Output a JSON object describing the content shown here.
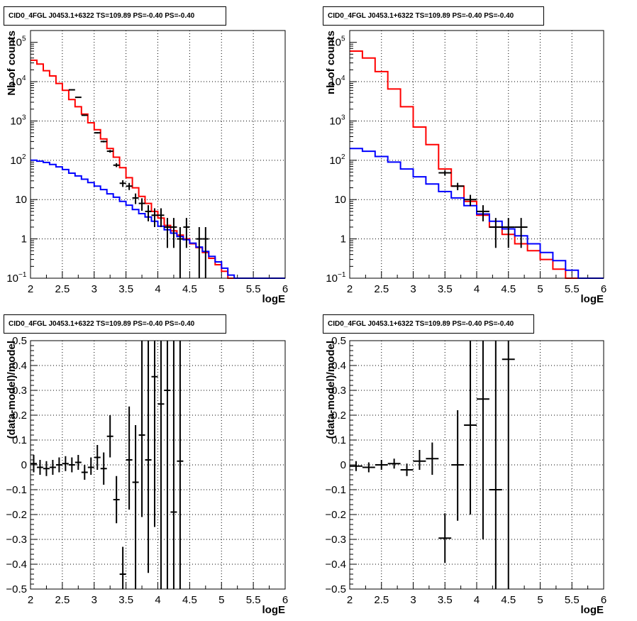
{
  "chart_data": [
    {
      "type": "line",
      "title": "CID0_4FGL J0453.1+6322 TS=109.89 PS=-0.40 PS=-0.40",
      "xlabel": "logE",
      "ylabel": "Nb of counts",
      "xlim": [
        2,
        6
      ],
      "ylim": [
        0.1,
        200000
      ],
      "yscale": "log",
      "grid": true,
      "x_ticks": [
        "2",
        "2.5",
        "3",
        "3.5",
        "4",
        "4.5",
        "5",
        "5.5",
        "6"
      ],
      "y_ticks": [
        {
          "value": 0.1,
          "label": "10",
          "exp": "−1"
        },
        {
          "value": 1,
          "label": "1",
          "exp": ""
        },
        {
          "value": 10,
          "label": "10",
          "exp": ""
        },
        {
          "value": 100,
          "label": "10",
          "exp": "2"
        },
        {
          "value": 1000,
          "label": "10",
          "exp": "3"
        },
        {
          "value": 10000,
          "label": "10",
          "exp": "4"
        },
        {
          "value": 100000,
          "label": "10",
          "exp": "5"
        }
      ],
      "bin_edges": [
        2.0,
        2.1,
        2.2,
        2.3,
        2.4,
        2.5,
        2.6,
        2.7,
        2.8,
        2.9,
        3.0,
        3.1,
        3.2,
        3.3,
        3.4,
        3.5,
        3.6,
        3.7,
        3.8,
        3.9,
        4.0,
        4.1,
        4.2,
        4.3,
        4.4,
        4.5,
        4.6,
        4.7,
        4.8,
        4.9,
        5.0,
        5.1,
        5.2,
        5.3,
        5.4,
        5.5,
        5.6,
        5.7,
        5.8,
        5.9,
        6.0
      ],
      "series": [
        {
          "name": "",
          "color": "#ff0000",
          "style": "step",
          "values": [
            35000,
            28000,
            19000,
            14000,
            9000,
            6000,
            3500,
            2300,
            1500,
            900,
            600,
            350,
            200,
            120,
            65,
            36,
            20,
            12,
            8,
            5,
            3.4,
            2.2,
            1.6,
            1.25,
            1.0,
            0.75,
            0.6,
            0.45,
            0.32,
            0.22,
            0.15,
            0.1,
            0.1,
            0.1,
            0.1,
            0.1,
            0.1,
            0.1,
            0.1,
            0.1
          ]
        },
        {
          "name": "",
          "color": "#0000ff",
          "style": "step",
          "values": [
            100,
            95,
            88,
            78,
            68,
            58,
            47,
            40,
            33,
            27,
            22,
            18,
            14,
            11.5,
            9,
            7.2,
            5.6,
            4.4,
            3.6,
            2.8,
            2.1,
            1.7,
            1.4,
            1.15,
            0.95,
            0.78,
            0.62,
            0.48,
            0.36,
            0.26,
            0.18,
            0.12,
            0.1,
            0.1,
            0.1,
            0.1,
            0.1,
            0.1,
            0.1,
            0.1
          ]
        }
      ],
      "points": [
        {
          "x": 2.65,
          "y": 6200,
          "lo": 6050,
          "hi": 6350
        },
        {
          "x": 2.75,
          "y": 4000,
          "lo": 3900,
          "hi": 4100
        },
        {
          "x": 2.85,
          "y": 1400,
          "lo": 1350,
          "hi": 1450
        },
        {
          "x": 3.05,
          "y": 500,
          "lo": 480,
          "hi": 520
        },
        {
          "x": 3.15,
          "y": 300,
          "lo": 285,
          "hi": 315
        },
        {
          "x": 3.25,
          "y": 170,
          "lo": 157,
          "hi": 183
        },
        {
          "x": 3.35,
          "y": 75,
          "lo": 67,
          "hi": 84
        },
        {
          "x": 3.45,
          "y": 26,
          "lo": 21,
          "hi": 31
        },
        {
          "x": 3.55,
          "y": 22,
          "lo": 17.5,
          "hi": 26.5
        },
        {
          "x": 3.65,
          "y": 11,
          "lo": 7.7,
          "hi": 14.3
        },
        {
          "x": 3.75,
          "y": 8,
          "lo": 5.2,
          "hi": 10.8
        },
        {
          "x": 3.85,
          "y": 5,
          "lo": 2.8,
          "hi": 7.2
        },
        {
          "x": 3.95,
          "y": 4,
          "lo": 2.0,
          "hi": 6.0
        },
        {
          "x": 4.05,
          "y": 4,
          "lo": 2.0,
          "hi": 6.0
        },
        {
          "x": 4.15,
          "y": 2,
          "lo": 0.59,
          "hi": 3.41
        },
        {
          "x": 4.25,
          "y": 2,
          "lo": 0.59,
          "hi": 3.41
        },
        {
          "x": 4.35,
          "y": 1,
          "lo": 0.1,
          "hi": 2.0
        },
        {
          "x": 4.45,
          "y": 2,
          "lo": 0.59,
          "hi": 3.41
        },
        {
          "x": 4.65,
          "y": 1,
          "lo": 0.1,
          "hi": 2.0
        },
        {
          "x": 4.75,
          "y": 1,
          "lo": 0.1,
          "hi": 2.0
        }
      ]
    },
    {
      "type": "line",
      "title": "CID0_4FGL J0453.1+6322 TS=109.89 PS=-0.40 PS=-0.40",
      "xlabel": "logE",
      "ylabel": "nb of counts",
      "xlim": [
        2,
        6
      ],
      "ylim": [
        0.1,
        200000
      ],
      "yscale": "log",
      "grid": true,
      "x_ticks": [
        "2",
        "2.5",
        "3",
        "3.5",
        "4",
        "4.5",
        "5",
        "5.5",
        "6"
      ],
      "y_ticks": [
        {
          "value": 0.1,
          "label": "10",
          "exp": "−1"
        },
        {
          "value": 1,
          "label": "1",
          "exp": ""
        },
        {
          "value": 10,
          "label": "10",
          "exp": ""
        },
        {
          "value": 100,
          "label": "10",
          "exp": "2"
        },
        {
          "value": 1000,
          "label": "10",
          "exp": "3"
        },
        {
          "value": 10000,
          "label": "10",
          "exp": "4"
        },
        {
          "value": 100000,
          "label": "10",
          "exp": "5"
        }
      ],
      "bin_edges": [
        2.0,
        2.2,
        2.4,
        2.6,
        2.8,
        3.0,
        3.2,
        3.4,
        3.6,
        3.8,
        4.0,
        4.2,
        4.4,
        4.6,
        4.8,
        5.0,
        5.2,
        5.4,
        5.6,
        5.8,
        6.0
      ],
      "series": [
        {
          "name": "",
          "color": "#ff0000",
          "style": "step",
          "values": [
            60000,
            40000,
            18000,
            6500,
            2300,
            700,
            250,
            60,
            22,
            9,
            4,
            2,
            1.3,
            0.75,
            0.5,
            0.3,
            0.17,
            0.1,
            0.1,
            0.1
          ]
        },
        {
          "name": "",
          "color": "#0000ff",
          "style": "step",
          "values": [
            200,
            170,
            125,
            90,
            60,
            38,
            25,
            16,
            11,
            7,
            4.3,
            2.8,
            1.8,
            1.2,
            0.75,
            0.45,
            0.28,
            0.16,
            0.1,
            0.1
          ]
        }
      ],
      "points": [
        {
          "x": 3.5,
          "y": 48,
          "lo": 41,
          "hi": 55
        },
        {
          "x": 3.7,
          "y": 22,
          "lo": 17.3,
          "hi": 26.7
        },
        {
          "x": 3.9,
          "y": 10,
          "lo": 6.8,
          "hi": 13.2
        },
        {
          "x": 4.1,
          "y": 5,
          "lo": 2.8,
          "hi": 7.2
        },
        {
          "x": 4.3,
          "y": 2,
          "lo": 0.59,
          "hi": 3.41
        },
        {
          "x": 4.5,
          "y": 2,
          "lo": 0.59,
          "hi": 3.41
        },
        {
          "x": 4.7,
          "y": 2,
          "lo": 0.59,
          "hi": 3.41
        }
      ]
    },
    {
      "type": "scatter",
      "title": "CID0_4FGL J0453.1+6322 TS=109.89 PS=-0.40 PS=-0.40",
      "xlabel": "logE",
      "ylabel": "(data-model)/model",
      "xlim": [
        2,
        6
      ],
      "ylim": [
        -0.5,
        0.5
      ],
      "yscale": "linear",
      "grid": true,
      "x_ticks": [
        "2",
        "2.5",
        "3",
        "3.5",
        "4",
        "4.5",
        "5",
        "5.5",
        "6"
      ],
      "y_ticks": [
        {
          "value": -0.5,
          "label": "−0.5"
        },
        {
          "value": -0.4,
          "label": "−0.4"
        },
        {
          "value": -0.3,
          "label": "−0.3"
        },
        {
          "value": -0.2,
          "label": "−0.2"
        },
        {
          "value": -0.1,
          "label": "−0.1"
        },
        {
          "value": 0,
          "label": "0"
        },
        {
          "value": 0.1,
          "label": "0.1"
        },
        {
          "value": 0.2,
          "label": "0.2"
        },
        {
          "value": 0.3,
          "label": "0.3"
        },
        {
          "value": 0.4,
          "label": "0.4"
        },
        {
          "value": 0.5,
          "label": "0.5"
        }
      ],
      "xerr": 0.05,
      "points": [
        {
          "x": 2.05,
          "y": 0.005,
          "lo": -0.03,
          "hi": 0.04
        },
        {
          "x": 2.15,
          "y": -0.01,
          "lo": -0.04,
          "hi": 0.02
        },
        {
          "x": 2.25,
          "y": -0.015,
          "lo": -0.045,
          "hi": 0.015
        },
        {
          "x": 2.35,
          "y": -0.01,
          "lo": -0.04,
          "hi": 0.02
        },
        {
          "x": 2.45,
          "y": 0.0,
          "lo": -0.03,
          "hi": 0.03
        },
        {
          "x": 2.55,
          "y": 0.005,
          "lo": -0.025,
          "hi": 0.035
        },
        {
          "x": 2.65,
          "y": 0.0,
          "lo": -0.03,
          "hi": 0.03
        },
        {
          "x": 2.75,
          "y": 0.01,
          "lo": -0.02,
          "hi": 0.04
        },
        {
          "x": 2.85,
          "y": -0.03,
          "lo": -0.06,
          "hi": 0.0
        },
        {
          "x": 2.95,
          "y": -0.01,
          "lo": -0.04,
          "hi": 0.03
        },
        {
          "x": 3.05,
          "y": 0.03,
          "lo": -0.02,
          "hi": 0.08
        },
        {
          "x": 3.15,
          "y": -0.015,
          "lo": -0.08,
          "hi": 0.05
        },
        {
          "x": 3.25,
          "y": 0.115,
          "lo": 0.03,
          "hi": 0.2
        },
        {
          "x": 3.35,
          "y": -0.14,
          "lo": -0.235,
          "hi": -0.045
        },
        {
          "x": 3.45,
          "y": -0.44,
          "lo": -0.5,
          "hi": -0.33
        },
        {
          "x": 3.55,
          "y": 0.02,
          "lo": -0.18,
          "hi": 0.235
        },
        {
          "x": 3.65,
          "y": -0.07,
          "lo": -0.5,
          "hi": 0.16
        },
        {
          "x": 3.75,
          "y": 0.12,
          "lo": -0.21,
          "hi": 0.5
        },
        {
          "x": 3.85,
          "y": 0.02,
          "lo": -0.435,
          "hi": 0.5
        },
        {
          "x": 3.95,
          "y": 0.355,
          "lo": -0.25,
          "hi": 0.5
        },
        {
          "x": 4.05,
          "y": 0.245,
          "lo": -0.5,
          "hi": 0.5
        },
        {
          "x": 4.15,
          "y": 0.3,
          "lo": -0.5,
          "hi": 0.5
        },
        {
          "x": 4.25,
          "y": -0.19,
          "lo": -0.5,
          "hi": 0.5
        },
        {
          "x": 4.35,
          "y": 0.015,
          "lo": -0.5,
          "hi": 0.5
        }
      ]
    },
    {
      "type": "scatter",
      "title": "CID0_4FGL J0453.1+6322 TS=109.89 PS=-0.40 PS=-0.40",
      "xlabel": "logE",
      "ylabel": "(data-model)/model",
      "xlim": [
        2,
        6
      ],
      "ylim": [
        -0.5,
        0.5
      ],
      "yscale": "linear",
      "grid": true,
      "x_ticks": [
        "2",
        "2.5",
        "3",
        "3.5",
        "4",
        "4.5",
        "5",
        "5.5",
        "6"
      ],
      "y_ticks": [
        {
          "value": -0.5,
          "label": "−0.5"
        },
        {
          "value": -0.4,
          "label": "−0.4"
        },
        {
          "value": -0.3,
          "label": "−0.3"
        },
        {
          "value": -0.2,
          "label": "−0.2"
        },
        {
          "value": -0.1,
          "label": "−0.1"
        },
        {
          "value": 0,
          "label": "0"
        },
        {
          "value": 0.1,
          "label": "0.1"
        },
        {
          "value": 0.2,
          "label": "0.2"
        },
        {
          "value": 0.3,
          "label": "0.3"
        },
        {
          "value": 0.4,
          "label": "0.4"
        },
        {
          "value": 0.5,
          "label": "0.5"
        }
      ],
      "xerr": 0.1,
      "points": [
        {
          "x": 2.1,
          "y": -0.005,
          "lo": -0.025,
          "hi": 0.015
        },
        {
          "x": 2.3,
          "y": -0.01,
          "lo": -0.03,
          "hi": 0.01
        },
        {
          "x": 2.5,
          "y": 0.0,
          "lo": -0.02,
          "hi": 0.02
        },
        {
          "x": 2.7,
          "y": 0.005,
          "lo": -0.015,
          "hi": 0.025
        },
        {
          "x": 2.9,
          "y": -0.02,
          "lo": -0.045,
          "hi": 0.005
        },
        {
          "x": 3.1,
          "y": 0.015,
          "lo": -0.02,
          "hi": 0.06
        },
        {
          "x": 3.3,
          "y": 0.025,
          "lo": -0.04,
          "hi": 0.09
        },
        {
          "x": 3.5,
          "y": -0.295,
          "lo": -0.395,
          "hi": -0.195
        },
        {
          "x": 3.7,
          "y": 0.0,
          "lo": -0.225,
          "hi": 0.22
        },
        {
          "x": 3.9,
          "y": 0.16,
          "lo": -0.2,
          "hi": 0.5
        },
        {
          "x": 4.1,
          "y": 0.265,
          "lo": -0.3,
          "hi": 0.5
        },
        {
          "x": 4.3,
          "y": -0.1,
          "lo": -0.5,
          "hi": 0.5
        },
        {
          "x": 4.5,
          "y": 0.425,
          "lo": -0.5,
          "hi": 0.5
        }
      ]
    }
  ]
}
